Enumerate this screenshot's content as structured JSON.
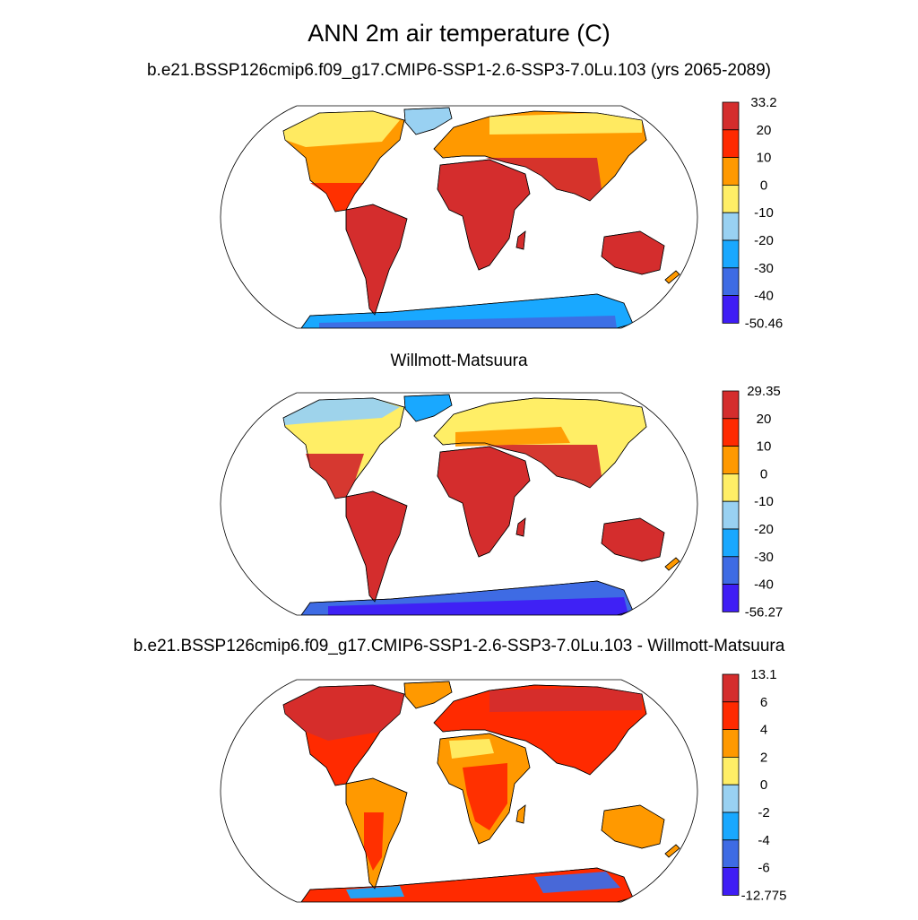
{
  "figure": {
    "title": "ANN 2m air temperature (C)"
  },
  "panels": [
    {
      "title": "b.e21.BSSP126cmip6.f09_g17.CMIP6-SSP1-2.6-SSP3-7.0Lu.103 (yrs 2065-2089)",
      "colorbar": {
        "labels": [
          "33.2",
          "20",
          "10",
          "0",
          "-10",
          "-20",
          "-30",
          "-40",
          "-50.46"
        ],
        "colors": [
          "#d42d2d",
          "#ff2a00",
          "#ff9900",
          "#ffee66",
          "#99d1f2",
          "#19a8ff",
          "#3e6be4",
          "#3f1df5"
        ]
      }
    },
    {
      "title": "Willmott-Matsuura",
      "colorbar": {
        "labels": [
          "29.35",
          "20",
          "10",
          "0",
          "-10",
          "-20",
          "-30",
          "-40",
          "-56.27"
        ],
        "colors": [
          "#d42d2d",
          "#ff2a00",
          "#ff9900",
          "#ffee66",
          "#99d1f2",
          "#19a8ff",
          "#3e6be4",
          "#3f1df5"
        ]
      }
    },
    {
      "title": "b.e21.BSSP126cmip6.f09_g17.CMIP6-SSP1-2.6-SSP3-7.0Lu.103 - Willmott-Matsuura",
      "colorbar": {
        "labels": [
          "13.1",
          "6",
          "4",
          "2",
          "0",
          "-2",
          "-4",
          "-6",
          "-12.775"
        ],
        "colors": [
          "#d42d2d",
          "#ff2a00",
          "#ff9900",
          "#ffee66",
          "#99d1f2",
          "#19a8ff",
          "#3e6be4",
          "#3f1df5"
        ]
      }
    }
  ]
}
